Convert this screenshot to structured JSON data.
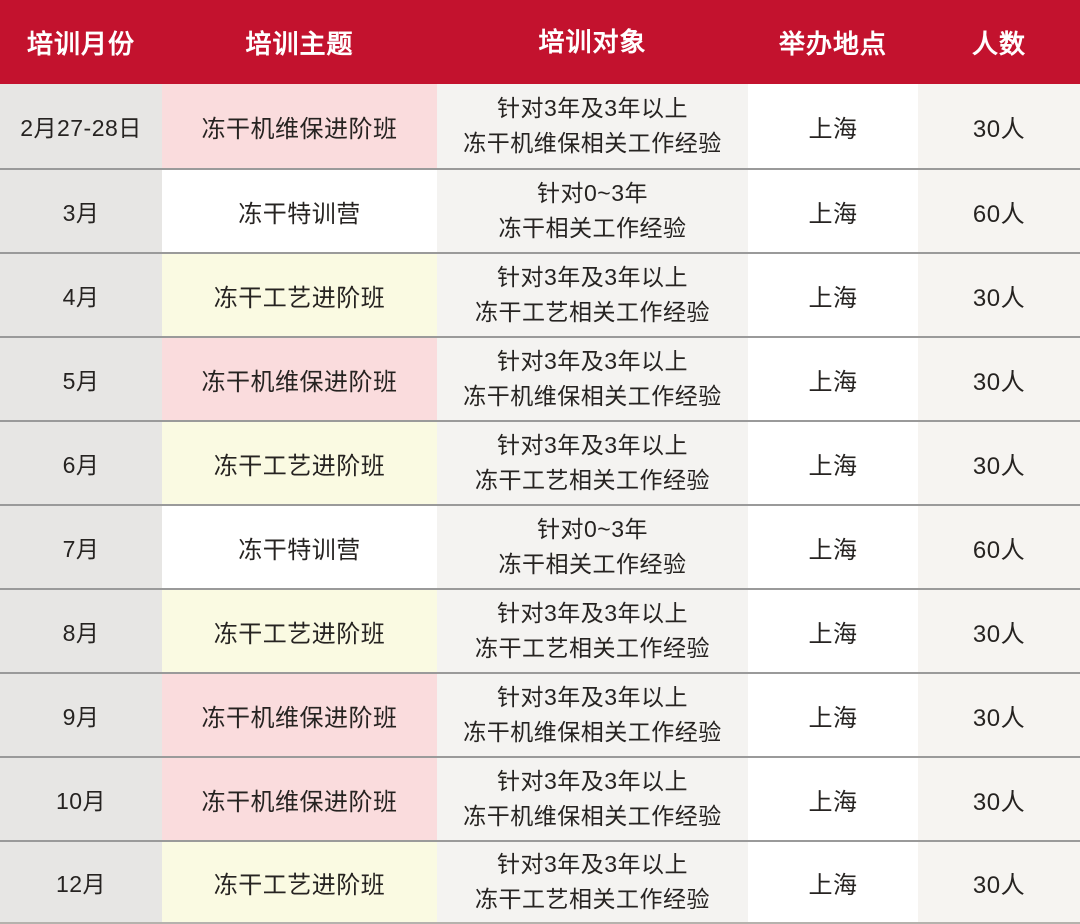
{
  "table": {
    "columns": [
      {
        "key": "month",
        "label": "培训月份"
      },
      {
        "key": "topic",
        "label": "培训主题"
      },
      {
        "key": "audience",
        "label": "培训对象"
      },
      {
        "key": "location",
        "label": "举办地点"
      },
      {
        "key": "count",
        "label": "人数"
      }
    ],
    "rows": [
      {
        "month": "2月27-28日",
        "topic": "冻干机维保进阶班",
        "topic_style": "pink",
        "audience": [
          "针对3年及3年以上",
          "冻干机维保相关工作经验"
        ],
        "location": "上海",
        "count": "30人"
      },
      {
        "month": "3月",
        "topic": "冻干特训营",
        "topic_style": "white",
        "audience": [
          "针对0~3年",
          "冻干相关工作经验"
        ],
        "location": "上海",
        "count": "60人"
      },
      {
        "month": "4月",
        "topic": "冻干工艺进阶班",
        "topic_style": "yellow",
        "audience": [
          "针对3年及3年以上",
          "冻干工艺相关工作经验"
        ],
        "location": "上海",
        "count": "30人"
      },
      {
        "month": "5月",
        "topic": "冻干机维保进阶班",
        "topic_style": "pink",
        "audience": [
          "针对3年及3年以上",
          "冻干机维保相关工作经验"
        ],
        "location": "上海",
        "count": "30人"
      },
      {
        "month": "6月",
        "topic": "冻干工艺进阶班",
        "topic_style": "yellow",
        "audience": [
          "针对3年及3年以上",
          "冻干工艺相关工作经验"
        ],
        "location": "上海",
        "count": "30人"
      },
      {
        "month": "7月",
        "topic": "冻干特训营",
        "topic_style": "white",
        "audience": [
          "针对0~3年",
          "冻干相关工作经验"
        ],
        "location": "上海",
        "count": "60人"
      },
      {
        "month": "8月",
        "topic": "冻干工艺进阶班",
        "topic_style": "yellow",
        "audience": [
          "针对3年及3年以上",
          "冻干工艺相关工作经验"
        ],
        "location": "上海",
        "count": "30人"
      },
      {
        "month": "9月",
        "topic": "冻干机维保进阶班",
        "topic_style": "pink",
        "audience": [
          "针对3年及3年以上",
          "冻干机维保相关工作经验"
        ],
        "location": "上海",
        "count": "30人"
      },
      {
        "month": "10月",
        "topic": "冻干机维保进阶班",
        "topic_style": "pink",
        "audience": [
          "针对3年及3年以上",
          "冻干机维保相关工作经验"
        ],
        "location": "上海",
        "count": "30人"
      },
      {
        "month": "12月",
        "topic": "冻干工艺进阶班",
        "topic_style": "yellow",
        "audience": [
          "针对3年及3年以上",
          "冻干工艺相关工作经验"
        ],
        "location": "上海",
        "count": "30人"
      }
    ]
  },
  "colors": {
    "header_bg": "#C3122E",
    "header_text": "#FFFFFF",
    "month_col_bg": "#E7E6E4",
    "topic_pink": "#FADCDD",
    "topic_white": "#FFFFFF",
    "topic_yellow": "#FAFAE2",
    "audience_col_bg": "#F4F3F1",
    "location_col_bg": "#FFFFFF",
    "count_col_bg": "#F6F4F1",
    "row_divider": "#9A9A9A",
    "bottom_edge": "#B5B2AD",
    "body_text": "#262321"
  }
}
